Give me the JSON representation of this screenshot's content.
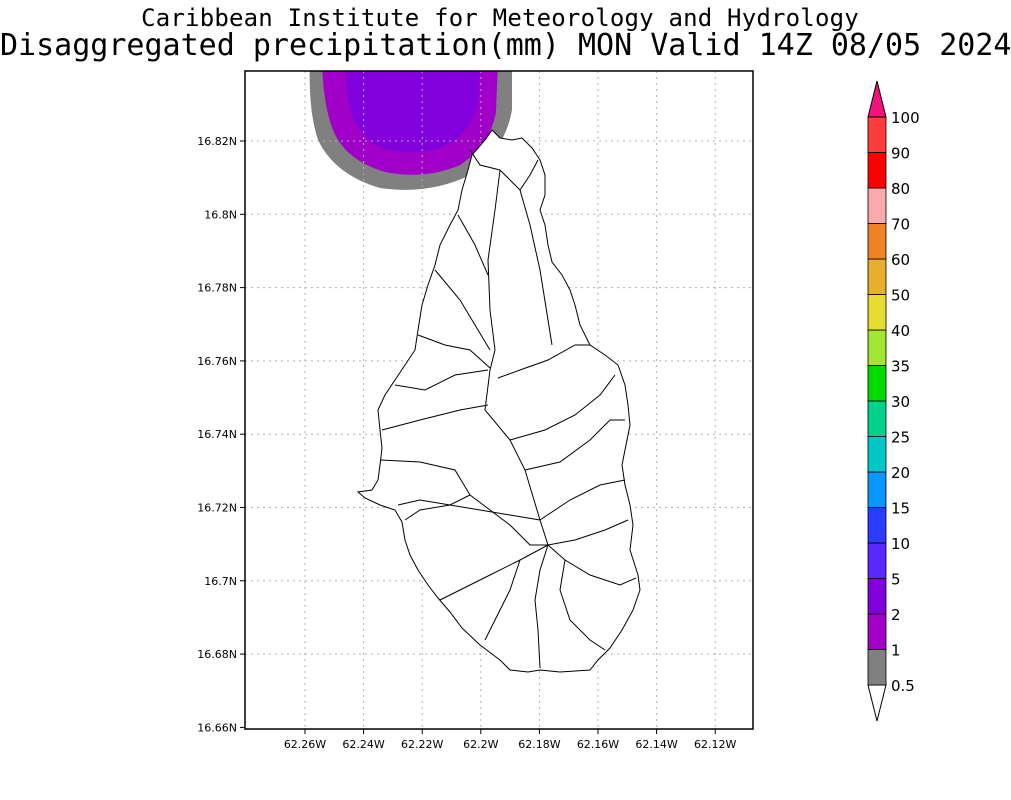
{
  "title_line1": "Caribbean Institute for Meteorology and Hydrology",
  "title_line2": "Disaggregated precipitation(mm) MON Valid 14Z 08/05 2024",
  "map": {
    "lat_ticks": [
      "16.82N",
      "16.8N",
      "16.78N",
      "16.76N",
      "16.74N",
      "16.72N",
      "16.7N",
      "16.68N",
      "16.66N"
    ],
    "lon_ticks": [
      "62.26W",
      "62.24W",
      "62.22W",
      "62.2W",
      "62.18W",
      "62.16W",
      "62.14W",
      "62.12W"
    ]
  },
  "colorbar": {
    "levels": [
      {
        "label": "0.5",
        "color": "#808080"
      },
      {
        "label": "1",
        "color": "#a000c8"
      },
      {
        "label": "2",
        "color": "#8200dc"
      },
      {
        "label": "5",
        "color": "#5a28ff"
      },
      {
        "label": "10",
        "color": "#2a3cff"
      },
      {
        "label": "15",
        "color": "#0a96ff"
      },
      {
        "label": "20",
        "color": "#00c8c8"
      },
      {
        "label": "25",
        "color": "#00d28c"
      },
      {
        "label": "30",
        "color": "#00dc00"
      },
      {
        "label": "35",
        "color": "#a0e632"
      },
      {
        "label": "40",
        "color": "#e6dc32"
      },
      {
        "label": "50",
        "color": "#e6af2d"
      },
      {
        "label": "60",
        "color": "#f08228"
      },
      {
        "label": "70",
        "color": "#faaaaa"
      },
      {
        "label": "80",
        "color": "#ff0000"
      },
      {
        "label": "90",
        "color": "#ff3c3c"
      },
      {
        "label": "100",
        "color": "#f0147a"
      }
    ]
  }
}
